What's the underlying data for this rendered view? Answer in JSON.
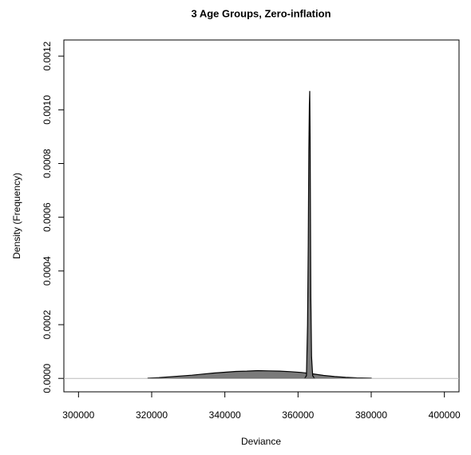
{
  "chart_data": {
    "type": "area",
    "title": "3 Age Groups, Zero-inflation",
    "x_label": "Deviance",
    "y_label": "Density (Frequency)",
    "xlim": [
      296000,
      404000
    ],
    "ylim": [
      -5e-05,
      0.00126
    ],
    "xticks": [
      300000,
      320000,
      340000,
      360000,
      380000,
      400000
    ],
    "yticks": [
      {
        "value": 0,
        "label": "0.0000"
      },
      {
        "value": 0.0002,
        "label": "0.0002"
      },
      {
        "value": 0.0004,
        "label": "0.0004"
      },
      {
        "value": 0.0006,
        "label": "0.0006"
      },
      {
        "value": 0.0008,
        "label": "0.0008"
      },
      {
        "value": 0.001,
        "label": "0.0010"
      },
      {
        "value": 0.0012,
        "label": "0.0012"
      }
    ],
    "baseline_color": "#bbbbbb",
    "series": [
      {
        "color": "#7a7a7a",
        "x": [
          319000,
          322000,
          325000,
          328000,
          331000,
          334000,
          337000,
          340000,
          343000,
          346000,
          349000,
          352000,
          355000,
          358000,
          361000,
          364000,
          367000,
          370000,
          373000,
          376000,
          380000
        ],
        "values": [
          1e-06,
          3e-06,
          6e-06,
          9e-06,
          1.2e-05,
          1.6e-05,
          2e-05,
          2.3e-05,
          2.6e-05,
          2.7e-05,
          2.9e-05,
          2.8e-05,
          2.7e-05,
          2.5e-05,
          2.2e-05,
          1.7e-05,
          1.1e-05,
          7e-06,
          4e-06,
          2e-06,
          1e-06
        ]
      },
      {
        "color": "#7a7a7a",
        "x": [
          361800,
          362300,
          362600,
          362800,
          362950,
          363100,
          363200,
          363300,
          363400,
          363500,
          363700,
          364000,
          364500
        ],
        "values": [
          0,
          1e-05,
          0.0002,
          0.0005,
          0.00085,
          0.00102,
          0.00107,
          0.0009,
          0.0006,
          0.0003,
          8e-05,
          1e-05,
          0
        ]
      }
    ]
  }
}
